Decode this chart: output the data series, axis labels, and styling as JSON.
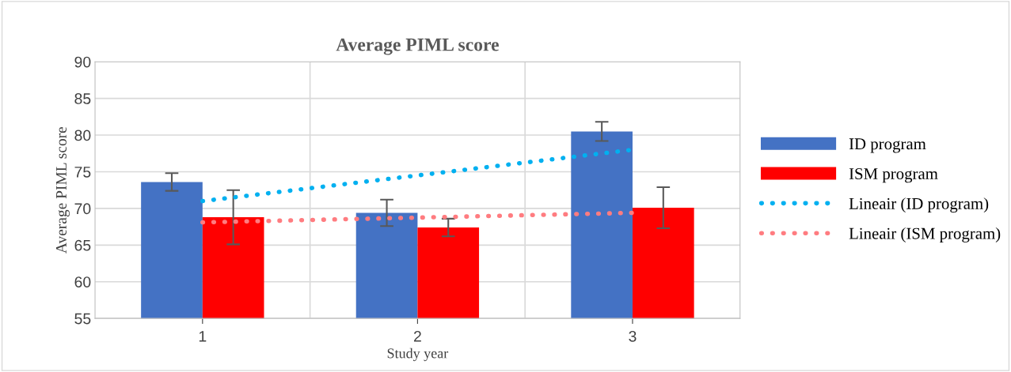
{
  "chart_data": {
    "type": "bar",
    "title": "Average PIML score",
    "xlabel": "Study year",
    "ylabel": "Average PIML score",
    "categories": [
      "1",
      "2",
      "3"
    ],
    "series": [
      {
        "name": "ID program",
        "color": "#4472c4",
        "values": [
          73.6,
          69.4,
          80.5
        ],
        "errors": [
          1.2,
          1.8,
          1.3
        ]
      },
      {
        "name": "ISM program",
        "color": "#ff0000",
        "values": [
          68.8,
          67.4,
          70.1
        ],
        "errors": [
          3.7,
          1.2,
          2.8
        ]
      },
      {
        "name": "Lineair (ID program)",
        "type": "line",
        "color": "#00b0f0",
        "x": [
          "1",
          "3"
        ],
        "values": [
          71.0,
          78.0
        ],
        "line_style": "dotted"
      },
      {
        "name": "Lineair (ISM program)",
        "type": "line",
        "color": "#ff7c80",
        "x": [
          "1",
          "3"
        ],
        "values": [
          68.1,
          69.4
        ],
        "line_style": "dotted"
      }
    ],
    "ylim": [
      55,
      90
    ],
    "yticks": [
      55,
      60,
      65,
      70,
      75,
      80,
      85,
      90
    ],
    "grid": true,
    "legend": "right"
  }
}
